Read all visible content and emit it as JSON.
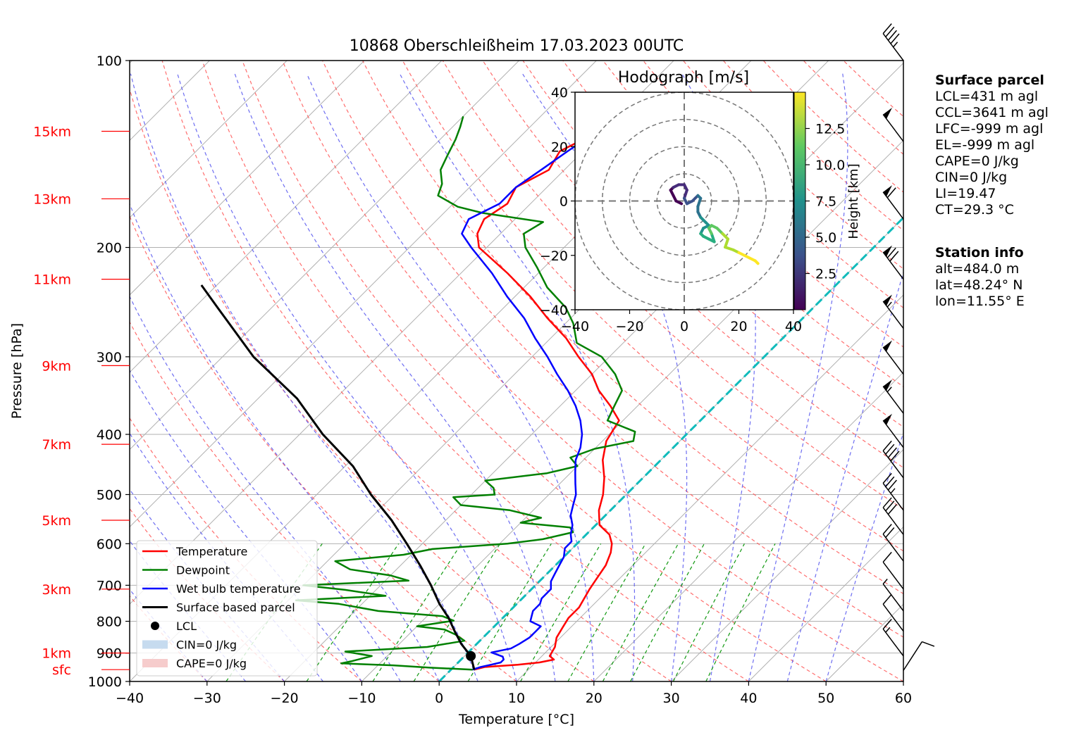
{
  "chart_data": {
    "type": "skew-t",
    "title": "10868 Oberschleißheim 17.03.2023 00UTC",
    "xlabel": "Temperature [°C]",
    "ylabel": "Pressure [hPa]",
    "xlim": [
      -40,
      60
    ],
    "ylim": [
      1000,
      100
    ],
    "x_ticks": [
      -40,
      -30,
      -20,
      -10,
      0,
      10,
      20,
      30,
      40,
      50,
      60
    ],
    "y_ticks": [
      100,
      200,
      300,
      400,
      500,
      600,
      700,
      800,
      900,
      1000
    ],
    "height_labels": [
      {
        "label": "15km",
        "p": 130
      },
      {
        "label": "13km",
        "p": 167
      },
      {
        "label": "11km",
        "p": 225
      },
      {
        "label": "9km",
        "p": 310
      },
      {
        "label": "7km",
        "p": 415
      },
      {
        "label": "5km",
        "p": 550
      },
      {
        "label": "3km",
        "p": 710
      },
      {
        "label": "1km",
        "p": 900
      },
      {
        "label": "sfc",
        "p": 957
      }
    ],
    "series": [
      {
        "name": "Temperature",
        "color": "#ff0000",
        "points": [
          [
            3.0,
            957
          ],
          [
            4,
            948
          ],
          [
            8,
            940
          ],
          [
            10.5,
            932
          ],
          [
            12,
            922
          ],
          [
            11,
            910
          ],
          [
            10.5,
            880
          ],
          [
            9.5,
            850
          ],
          [
            9,
            820
          ],
          [
            8.5,
            790
          ],
          [
            8.5,
            760
          ],
          [
            8,
            735
          ],
          [
            7.5,
            710
          ],
          [
            7,
            680
          ],
          [
            6.5,
            650
          ],
          [
            5.5,
            620
          ],
          [
            4.5,
            600
          ],
          [
            3,
            580
          ],
          [
            0.5,
            560
          ],
          [
            -1.5,
            530
          ],
          [
            -3,
            500
          ],
          [
            -5,
            470
          ],
          [
            -7.5,
            440
          ],
          [
            -9.5,
            410
          ],
          [
            -10.5,
            380
          ],
          [
            -13.5,
            360
          ],
          [
            -17,
            340
          ],
          [
            -20,
            320
          ],
          [
            -24,
            300
          ],
          [
            -28,
            280
          ],
          [
            -33,
            260
          ],
          [
            -38,
            240
          ],
          [
            -44,
            220
          ],
          [
            -51,
            200
          ],
          [
            -53,
            190
          ],
          [
            -54,
            180
          ],
          [
            -53,
            170
          ],
          [
            -54,
            160
          ],
          [
            -52,
            150
          ],
          [
            -53,
            140
          ],
          [
            -51,
            132
          ],
          [
            -51,
            128
          ]
        ]
      },
      {
        "name": "Dewpoint",
        "color": "#008000",
        "points": [
          [
            2.8,
            957
          ],
          [
            -3,
            950
          ],
          [
            -8,
            942
          ],
          [
            -15,
            935
          ],
          [
            -14,
            928
          ],
          [
            -12,
            910
          ],
          [
            -16,
            895
          ],
          [
            -6,
            880
          ],
          [
            -2,
            860
          ],
          [
            -4,
            840
          ],
          [
            -6,
            825
          ],
          [
            -10,
            815
          ],
          [
            -6,
            798
          ],
          [
            -8,
            785
          ],
          [
            -17,
            770
          ],
          [
            -23,
            750
          ],
          [
            -29,
            740
          ],
          [
            -18,
            728
          ],
          [
            -24,
            712
          ],
          [
            -30,
            700
          ],
          [
            -17,
            688
          ],
          [
            -20,
            675
          ],
          [
            -26,
            660
          ],
          [
            -29,
            640
          ],
          [
            -21,
            625
          ],
          [
            -18,
            612
          ],
          [
            -9,
            600
          ],
          [
            -5,
            590
          ],
          [
            -2,
            575
          ],
          [
            -3,
            565
          ],
          [
            -10,
            555
          ],
          [
            -8,
            545
          ],
          [
            -13,
            530
          ],
          [
            -20,
            520
          ],
          [
            -22,
            505
          ],
          [
            -17,
            500
          ],
          [
            -18,
            488
          ],
          [
            -20,
            475
          ],
          [
            -13,
            462
          ],
          [
            -10,
            450
          ],
          [
            -12,
            436
          ],
          [
            -10,
            422
          ],
          [
            -6,
            410
          ],
          [
            -7,
            396
          ],
          [
            -12,
            380
          ],
          [
            -13,
            360
          ],
          [
            -14,
            340
          ],
          [
            -17,
            320
          ],
          [
            -21,
            300
          ],
          [
            -26,
            285
          ],
          [
            -29,
            265
          ],
          [
            -32,
            250
          ],
          [
            -37,
            232
          ],
          [
            -41,
            215
          ],
          [
            -45,
            200
          ],
          [
            -47,
            190
          ],
          [
            -46,
            182
          ],
          [
            -55,
            176
          ],
          [
            -59,
            172
          ],
          [
            -63,
            165
          ],
          [
            -64,
            158
          ],
          [
            -66,
            150
          ],
          [
            -67,
            142
          ],
          [
            -68,
            134
          ],
          [
            -69,
            128
          ],
          [
            -70,
            123
          ]
        ]
      },
      {
        "name": "Wet bulb temperature",
        "color": "#0000ff",
        "points": [
          [
            2.8,
            957
          ],
          [
            3.5,
            948
          ],
          [
            4.5,
            940
          ],
          [
            5.5,
            932
          ],
          [
            5.5,
            922
          ],
          [
            5,
            912
          ],
          [
            3,
            898
          ],
          [
            5,
            885
          ],
          [
            5.5,
            870
          ],
          [
            6,
            850
          ],
          [
            6,
            830
          ],
          [
            6,
            815
          ],
          [
            4,
            800
          ],
          [
            3.5,
            785
          ],
          [
            3,
            770
          ],
          [
            3,
            750
          ],
          [
            2.5,
            735
          ],
          [
            2.5,
            710
          ],
          [
            1.5,
            690
          ],
          [
            1,
            670
          ],
          [
            0.5,
            650
          ],
          [
            0,
            630
          ],
          [
            -1,
            610
          ],
          [
            -1,
            595
          ],
          [
            -2,
            580
          ],
          [
            -3,
            560
          ],
          [
            -4.5,
            540
          ],
          [
            -5.5,
            520
          ],
          [
            -6.5,
            500
          ],
          [
            -8,
            480
          ],
          [
            -9.5,
            460
          ],
          [
            -11,
            440
          ],
          [
            -12,
            420
          ],
          [
            -13.5,
            400
          ],
          [
            -15.5,
            380
          ],
          [
            -18,
            360
          ],
          [
            -21,
            340
          ],
          [
            -24.5,
            320
          ],
          [
            -28,
            300
          ],
          [
            -32,
            280
          ],
          [
            -36,
            260
          ],
          [
            -41,
            240
          ],
          [
            -46,
            220
          ],
          [
            -52,
            200
          ],
          [
            -55,
            190
          ],
          [
            -56,
            180
          ],
          [
            -54,
            170
          ],
          [
            -54,
            160
          ],
          [
            -53,
            150
          ],
          [
            -52,
            140
          ],
          [
            -51,
            132
          ],
          [
            -51,
            128
          ]
        ]
      },
      {
        "name": "Surface based parcel",
        "color": "#000000",
        "points": [
          [
            3.0,
            957
          ],
          [
            0.8,
            910
          ],
          [
            -2,
            870
          ],
          [
            -4.5,
            830
          ],
          [
            -7,
            790
          ],
          [
            -10,
            750
          ],
          [
            -13.5,
            700
          ],
          [
            -17.5,
            650
          ],
          [
            -22,
            600
          ],
          [
            -27,
            550
          ],
          [
            -33,
            500
          ],
          [
            -39,
            450
          ],
          [
            -47,
            400
          ],
          [
            -55,
            350
          ],
          [
            -66,
            300
          ],
          [
            -77,
            250
          ],
          [
            -82,
            230
          ]
        ]
      }
    ],
    "lcl": {
      "t": 0.8,
      "p": 910
    },
    "freezing_level_dashed": true,
    "wind_barbs_right_axis": true,
    "legend": {
      "placement": "lower-left",
      "entries": [
        "Temperature",
        "Dewpoint",
        "Wet bulb temperature",
        "Surface based parcel",
        "LCL",
        "CIN=0 J/kg",
        "CAPE=0 J/kg"
      ]
    },
    "hodograph": {
      "title": "Hodograph [m/s]",
      "xlim": [
        -40,
        40
      ],
      "ylim": [
        -40,
        40
      ],
      "ticks": [
        -40,
        -20,
        0,
        20,
        40
      ],
      "ring_radii": [
        10,
        20,
        30,
        40
      ],
      "colorbar_label": "Height [km]",
      "colorbar_ticks": [
        "2.5",
        "5.0",
        "7.5",
        "10.0",
        "12.5"
      ],
      "points": [
        [
          -1,
          -1
        ],
        [
          -3,
          0
        ],
        [
          -4,
          2
        ],
        [
          -5,
          4
        ],
        [
          -4,
          5
        ],
        [
          -2,
          6
        ],
        [
          0,
          6
        ],
        [
          1,
          4
        ],
        [
          0,
          1
        ],
        [
          1,
          -1
        ],
        [
          3,
          0
        ],
        [
          4,
          1
        ],
        [
          5,
          2
        ],
        [
          6,
          1
        ],
        [
          5,
          -2
        ],
        [
          5,
          -4
        ],
        [
          6,
          -6
        ],
        [
          8,
          -8
        ],
        [
          9,
          -9
        ],
        [
          7,
          -10
        ],
        [
          6,
          -12
        ],
        [
          7,
          -13
        ],
        [
          9,
          -14
        ],
        [
          11,
          -15
        ],
        [
          10,
          -12
        ],
        [
          9,
          -10
        ],
        [
          10,
          -9
        ],
        [
          12,
          -10
        ],
        [
          14,
          -12
        ],
        [
          16,
          -14
        ],
        [
          15,
          -17
        ],
        [
          18,
          -18
        ],
        [
          20,
          -19
        ],
        [
          22,
          -20
        ],
        [
          24,
          -21
        ],
        [
          26,
          -22
        ],
        [
          27,
          -23
        ]
      ]
    }
  },
  "side_info": {
    "surface_header": "Surface parcel",
    "surface_lines": [
      "LCL=431 m agl",
      "CCL=3641 m agl",
      "LFC=-999 m agl",
      "EL=-999 m agl",
      "CAPE=0 J/kg",
      "CIN=0 J/kg",
      "LI=19.47",
      "CT=29.3 °C"
    ],
    "station_header": "Station info",
    "station_lines": [
      "alt=484.0 m",
      "lat=48.24° N",
      "lon=11.55° E"
    ]
  }
}
